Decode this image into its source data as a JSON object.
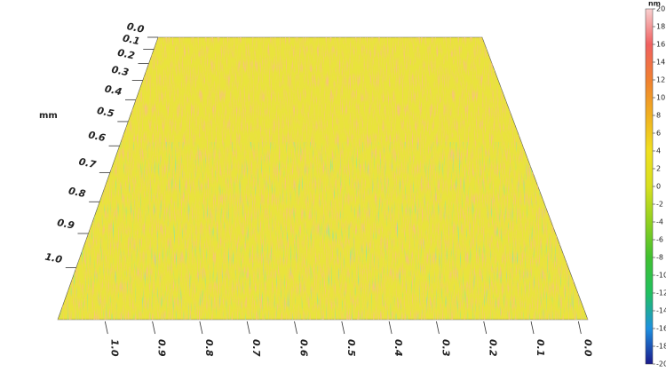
{
  "chart_data": {
    "type": "surface",
    "ylabel": "mm",
    "ylim": [
      0,
      1.14
    ],
    "yticks": [
      {
        "value": 0,
        "label": "0.0"
      },
      0.1,
      0.2,
      0.3,
      0.4,
      0.5,
      0.6,
      0.7,
      0.8,
      0.9,
      {
        "value": 1,
        "label": "1.0"
      }
    ],
    "xlim": [
      1.1,
      -0.02
    ],
    "xticks": [
      {
        "value": 1,
        "label": "1.0"
      },
      0.9,
      0.8,
      0.7,
      0.6,
      0.5,
      0.4,
      0.3,
      0.2,
      0.1,
      {
        "value": 0,
        "label": "0.0"
      }
    ],
    "colorbar": {
      "label": "nm",
      "lim": [
        -20,
        20
      ],
      "ticks": [
        20,
        18,
        16,
        14,
        12,
        10,
        8,
        6,
        4,
        2,
        0,
        -2,
        -4,
        -6,
        -8,
        -10,
        -12,
        -14,
        -16,
        -18,
        -20
      ],
      "colors": [
        "#1a1a8c",
        "#1e90e0",
        "#20c060",
        "#40c030",
        "#90d020",
        "#d8e020",
        "#f0e020",
        "#f0b020",
        "#f08030",
        "#f06060",
        "#f8d0d0"
      ]
    }
  }
}
